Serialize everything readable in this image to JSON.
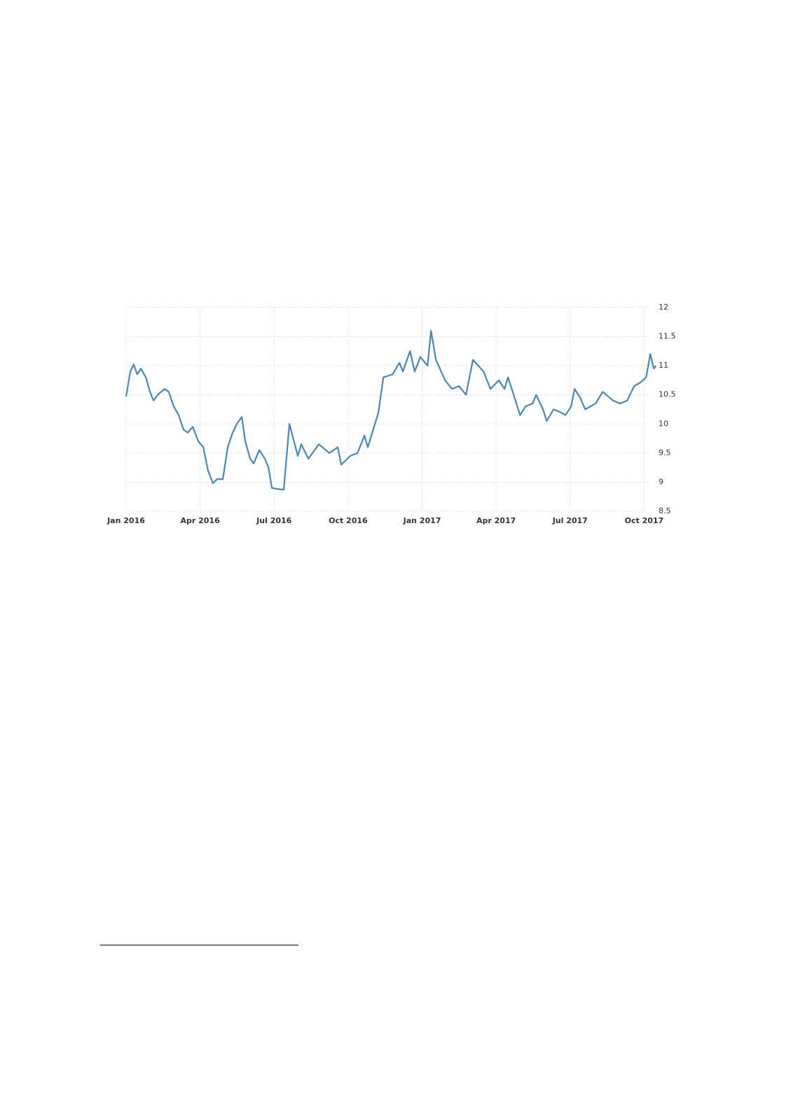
{
  "chart_data": {
    "type": "line",
    "x": [
      0,
      0.17,
      0.31,
      0.45,
      0.6,
      0.8,
      0.97,
      1.11,
      1.28,
      1.56,
      1.73,
      1.93,
      2.13,
      2.33,
      2.5,
      2.7,
      2.93,
      3.13,
      3.32,
      3.52,
      3.69,
      3.92,
      4.12,
      4.32,
      4.49,
      4.69,
      4.83,
      5.03,
      5.17,
      5.4,
      5.63,
      5.77,
      5.91,
      6.16,
      6.39,
      6.62,
      6.96,
      7.1,
      7.39,
      7.81,
      8.24,
      8.58,
      8.72,
      9.09,
      9.38,
      9.66,
      9.8,
      10.23,
      10.43,
      10.8,
      11.08,
      11.22,
      11.51,
      11.7,
      11.93,
      12.22,
      12.36,
      12.56,
      12.93,
      13.21,
      13.49,
      13.78,
      14.06,
      14.49,
      14.77,
      15.11,
      15.34,
      15.48,
      15.71,
      15.97,
      16.19,
      16.48,
      16.62,
      16.9,
      17.05,
      17.33,
      17.61,
      17.81,
      18.04,
      18.18,
      18.41,
      18.61,
      19.03,
      19.32,
      19.74,
      20.03,
      20.31,
      20.6,
      20.88,
      21.08,
      21.25,
      21.39,
      21.48
    ],
    "series": [
      {
        "color": "#4a86b8",
        "values": [
          10.47,
          10.9,
          11.02,
          10.85,
          10.95,
          10.8,
          10.55,
          10.4,
          10.5,
          10.6,
          10.55,
          10.3,
          10.15,
          9.9,
          9.85,
          9.95,
          9.7,
          9.6,
          9.2,
          8.98,
          9.05,
          9.05,
          9.6,
          9.85,
          10.0,
          10.12,
          9.7,
          9.4,
          9.32,
          9.55,
          9.4,
          9.25,
          8.9,
          8.88,
          8.87,
          10.0,
          9.45,
          9.65,
          9.4,
          9.65,
          9.5,
          9.6,
          9.3,
          9.45,
          9.5,
          9.8,
          9.6,
          10.2,
          10.8,
          10.85,
          11.05,
          10.9,
          11.25,
          10.9,
          11.15,
          11.0,
          11.6,
          11.1,
          10.75,
          10.6,
          10.65,
          10.5,
          11.1,
          10.9,
          10.6,
          10.75,
          10.6,
          10.8,
          10.5,
          10.15,
          10.3,
          10.35,
          10.5,
          10.25,
          10.05,
          10.25,
          10.2,
          10.15,
          10.3,
          10.6,
          10.45,
          10.25,
          10.35,
          10.55,
          10.4,
          10.35,
          10.4,
          10.65,
          10.72,
          10.8,
          11.2,
          10.95,
          11.0
        ]
      }
    ],
    "xlim": [
      0,
      21.5
    ],
    "xticks": [
      {
        "value": 0,
        "label": "Jan 2016"
      },
      {
        "value": 3,
        "label": "Apr 2016"
      },
      {
        "value": 6,
        "label": "Jul 2016"
      },
      {
        "value": 9,
        "label": "Oct 2016"
      },
      {
        "value": 12,
        "label": "Jan 2017"
      },
      {
        "value": 15,
        "label": "Apr 2017"
      },
      {
        "value": 18,
        "label": "Jul 2017"
      },
      {
        "value": 21,
        "label": "Oct 2017"
      }
    ],
    "ylim": [
      8.5,
      12
    ],
    "yticks": [
      8.5,
      9,
      9.5,
      10,
      10.5,
      11,
      11.5,
      12
    ],
    "grid": true
  }
}
